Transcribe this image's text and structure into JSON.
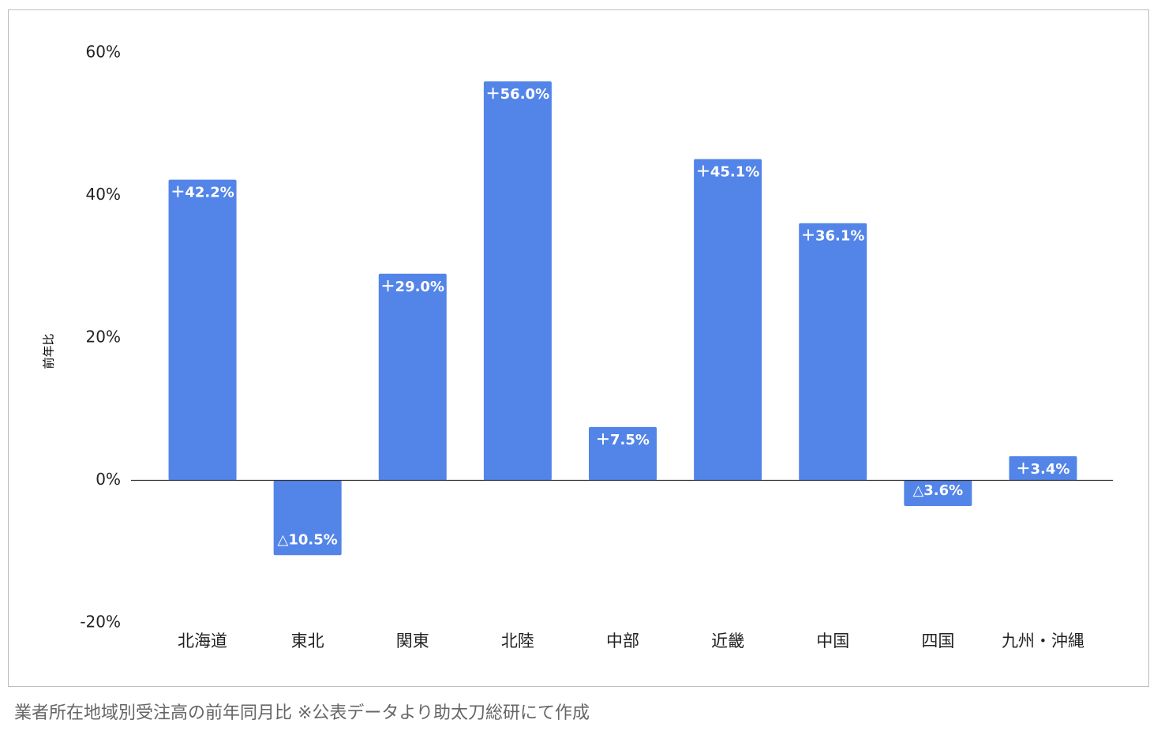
{
  "chart_data": {
    "type": "bar",
    "y_label": "前年比",
    "categories": [
      "北海道",
      "東北",
      "関東",
      "北陸",
      "中部",
      "近畿",
      "中国",
      "四国",
      "九州・沖縄"
    ],
    "values": [
      42.2,
      -10.5,
      29.0,
      56.0,
      7.5,
      45.1,
      36.1,
      -3.6,
      3.4
    ],
    "value_labels": [
      "＋42.2%",
      "△10.5%",
      "＋29.0%",
      "＋56.0%",
      "＋7.5%",
      "＋45.1%",
      "＋36.1%",
      "△3.6%",
      "＋3.4%"
    ],
    "color": "#5384e8",
    "ylim": [
      -20,
      60
    ],
    "yticks": [
      {
        "value": -20,
        "label": "-20%"
      },
      {
        "value": 0,
        "label": "0%"
      },
      {
        "value": 20,
        "label": "20%"
      },
      {
        "value": 40,
        "label": "40%"
      },
      {
        "value": 60,
        "label": "60%"
      }
    ],
    "grid": false
  },
  "caption": "業者所在地域別受注高の前年同月比 ※公表データより助太刀総研にて作成"
}
